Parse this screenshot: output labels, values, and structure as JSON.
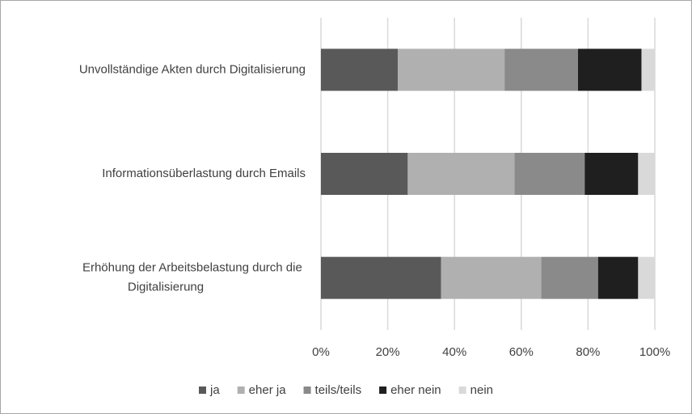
{
  "chart_data": {
    "type": "stacked-bar-horizontal",
    "categories": [
      "Unvollständige Akten durch Digitalisierung",
      "Informationsüberlastung durch Emails",
      "Erhöhung der Arbeitsbelastung durch die Digitalisierung"
    ],
    "series": [
      {
        "name": "ja",
        "color": "#595959",
        "values": [
          23,
          26,
          36
        ]
      },
      {
        "name": "eher ja",
        "color": "#b0b0b0",
        "values": [
          32,
          32,
          30
        ]
      },
      {
        "name": "teils/teils",
        "color": "#8a8a8a",
        "values": [
          22,
          21,
          17
        ]
      },
      {
        "name": "eher nein",
        "color": "#1f1f1f",
        "values": [
          19,
          16,
          12
        ]
      },
      {
        "name": "nein",
        "color": "#d9d9d9",
        "values": [
          4,
          5,
          5
        ]
      }
    ],
    "xlim": [
      0,
      100
    ],
    "xticks": [
      {
        "value": 0,
        "label": "0%"
      },
      {
        "value": 20,
        "label": "20%"
      },
      {
        "value": 40,
        "label": "40%"
      },
      {
        "value": 60,
        "label": "60%"
      },
      {
        "value": 80,
        "label": "80%"
      },
      {
        "value": 100,
        "label": "100%"
      }
    ],
    "grid": true,
    "legend": "bottom"
  }
}
